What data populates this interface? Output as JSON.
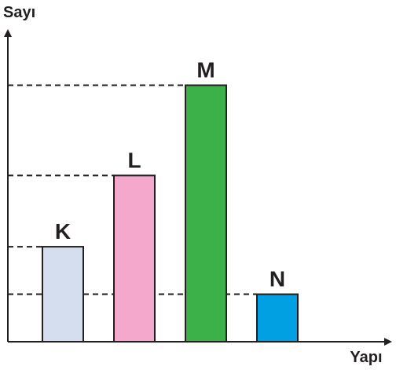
{
  "chart_data": {
    "type": "bar",
    "title": "",
    "ylabel": "Sayı",
    "xlabel": "Yapı",
    "categories": [
      "K",
      "L",
      "M",
      "N"
    ],
    "values": [
      2,
      3.5,
      5.4,
      1
    ],
    "ylim": [
      0,
      6.5
    ],
    "yticks_labeled": false,
    "grid": false,
    "reference_lines": "dashed from y-axis to each bar top",
    "colors": [
      "#d5deef",
      "#f3a8cc",
      "#3db149",
      "#00a0e3"
    ],
    "edge_color": "#231f20"
  }
}
